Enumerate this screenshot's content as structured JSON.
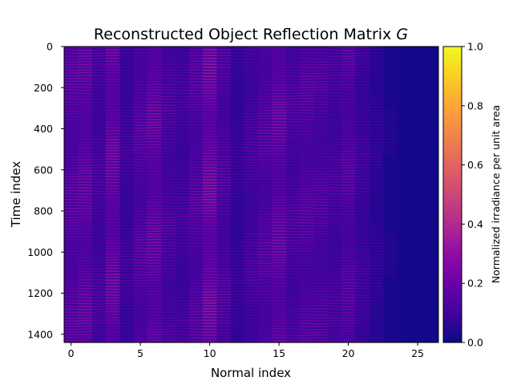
{
  "chart_data": {
    "type": "heatmap",
    "title": "Reconstructed Object Reflection Matrix G",
    "title_main": "Reconstructed Object Reflection Matrix ",
    "title_symbol": "G",
    "xlabel": "Normal index",
    "ylabel": "Time index",
    "colorbar_label": "Normalized irradiance per unit area",
    "colormap": "plasma",
    "xlim": [
      -0.5,
      26.5
    ],
    "ylim": [
      1440,
      0
    ],
    "x_ticks": [
      0,
      5,
      10,
      15,
      20,
      25
    ],
    "y_ticks": [
      0,
      200,
      400,
      600,
      800,
      1000,
      1200,
      1400
    ],
    "colorbar_range": [
      0.0,
      1.0
    ],
    "colorbar_ticks": [
      "0.0",
      "0.2",
      "0.4",
      "0.6",
      "0.8",
      "1.0"
    ],
    "n_columns": 27,
    "n_rows": 1440,
    "column_intensity": [
      0.18,
      0.2,
      0.14,
      0.22,
      0.12,
      0.17,
      0.21,
      0.15,
      0.13,
      0.17,
      0.24,
      0.16,
      0.1,
      0.14,
      0.17,
      0.21,
      0.15,
      0.17,
      0.16,
      0.14,
      0.17,
      0.12,
      0.08,
      0.05,
      0.03,
      0.02,
      0.02
    ],
    "grid": false
  }
}
